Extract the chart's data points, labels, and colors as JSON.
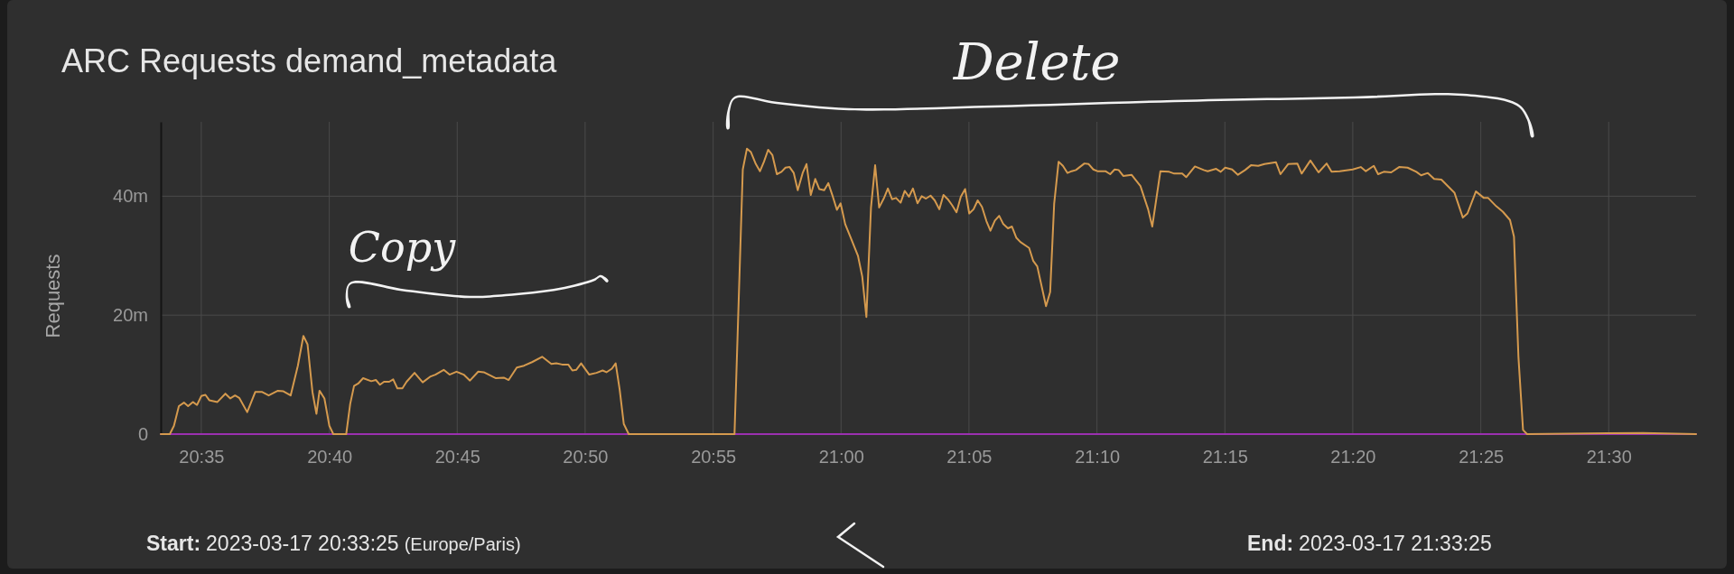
{
  "chart_data": {
    "type": "line",
    "title": "ARC Requests demand_metadata",
    "ylabel": "Requests",
    "annotations": [
      "Copy",
      "Delete",
      "Start: 2023-03-17 20:33:25 (Europe/Paris)",
      "End: 2023-03-17 21:33:25"
    ],
    "xlim": [
      20.5569,
      21.5569
    ],
    "xticks": [
      {
        "value": 20.5833,
        "label": "20:35"
      },
      {
        "value": 20.6667,
        "label": "20:40"
      },
      {
        "value": 20.75,
        "label": "20:45"
      },
      {
        "value": 20.8333,
        "label": "20:50"
      },
      {
        "value": 20.9167,
        "label": "20:55"
      },
      {
        "value": 21.0,
        "label": "21:00"
      },
      {
        "value": 21.0833,
        "label": "21:05"
      },
      {
        "value": 21.1667,
        "label": "21:10"
      },
      {
        "value": 21.25,
        "label": "21:15"
      },
      {
        "value": 21.3333,
        "label": "21:20"
      },
      {
        "value": 21.4167,
        "label": "21:25"
      },
      {
        "value": 21.5,
        "label": "21:30"
      }
    ],
    "ylim": [
      0,
      52.5
    ],
    "yticks": [
      0,
      {
        "value": 20,
        "label": "20m"
      },
      {
        "value": 40,
        "label": "40m"
      }
    ],
    "grid": true,
    "marker": "none",
    "line_style": "solid",
    "series": [
      {
        "color": "#d59a4e",
        "x": [
          20.5569,
          20.5628,
          20.5655,
          20.5687,
          20.572,
          20.5747,
          20.5778,
          20.5805,
          20.5833,
          20.586,
          20.5885,
          20.5938,
          20.599,
          20.6022,
          20.6053,
          20.608,
          20.6132,
          20.6185,
          20.6227,
          20.6272,
          20.6332,
          20.6368,
          20.6415,
          20.6462,
          20.6498,
          20.6525,
          20.6557,
          20.6583,
          20.6603,
          20.6635,
          20.6667,
          20.6693,
          20.6777,
          20.6803,
          20.6828,
          20.6855,
          20.6887,
          20.694,
          20.697,
          20.6997,
          20.7023,
          20.7057,
          20.7083,
          20.711,
          20.7143,
          20.717,
          20.7222,
          20.7275,
          20.7327,
          20.7358,
          20.7412,
          20.745,
          20.7495,
          20.7542,
          20.7583,
          20.7637,
          20.7673,
          20.7752,
          20.7803,
          20.7835,
          20.7888,
          20.7935,
          20.7987,
          20.8053,
          20.8113,
          20.8145,
          20.8183,
          20.8223,
          20.825,
          20.8275,
          20.8307,
          20.836,
          20.8407,
          20.8447,
          20.8472,
          20.8507,
          20.8532,
          20.8558,
          20.8585,
          20.8617,
          20.9,
          20.9306,
          20.936,
          20.9387,
          20.9413,
          20.9445,
          20.9472,
          20.9498,
          20.9525,
          20.9553,
          20.9582,
          20.9612,
          20.9638,
          20.9665,
          20.9692,
          20.9718,
          20.975,
          20.9775,
          20.9803,
          20.9832,
          20.9858,
          20.989,
          20.9917,
          20.9943,
          20.9973,
          20.9997,
          21.0027,
          21.006,
          21.011,
          21.0138,
          21.0165,
          21.0195,
          21.0222,
          21.0248,
          21.0278,
          21.0305,
          21.0332,
          21.0358,
          21.0388,
          21.0415,
          21.0442,
          21.0468,
          21.0498,
          21.0525,
          21.0553,
          21.0583,
          21.061,
          21.064,
          21.0667,
          21.0695,
          21.0723,
          21.0752,
          21.078,
          21.0808,
          21.0835,
          21.0863,
          21.089,
          21.0918,
          21.0947,
          21.0973,
          21.1002,
          21.103,
          21.1057,
          21.1087,
          21.1113,
          21.1142,
          21.1168,
          21.1225,
          21.1252,
          21.1278,
          21.1335,
          21.1362,
          21.1388,
          21.1417,
          21.1445,
          21.1475,
          21.1502,
          21.153,
          21.1585,
          21.1613,
          21.1643,
          21.167,
          21.1722,
          21.1753,
          21.1782,
          21.1808,
          21.1838,
          21.1892,
          21.195,
          21.2,
          21.2027,
          21.208,
          21.2137,
          21.217,
          21.2222,
          21.2248,
          21.2305,
          21.2362,
          21.2388,
          21.2443,
          21.2473,
          21.2502,
          21.2547,
          21.2585,
          21.2632,
          21.267,
          21.2717,
          21.2758,
          21.2833,
          21.2862,
          21.2912,
          21.2972,
          21.3,
          21.3057,
          21.311,
          21.3163,
          21.3195,
          21.3248,
          21.3333,
          21.3385,
          21.3418,
          21.347,
          21.3498,
          21.3535,
          21.3583,
          21.3635,
          21.369,
          21.3747,
          21.3778,
          21.3822,
          21.3863,
          21.391,
          21.3948,
          21.3995,
          21.405,
          21.408,
          21.4135,
          21.4187,
          21.4215,
          21.4268,
          21.431,
          21.4357,
          21.4383,
          21.4412,
          21.4442,
          21.4468,
          21.5223,
          21.5569
        ],
        "values": [
          0,
          0,
          1.4,
          4.7,
          5.3,
          4.7,
          5.4,
          4.9,
          6.4,
          6.6,
          5.7,
          5.4,
          6.8,
          6.0,
          6.5,
          6.1,
          3.7,
          7.1,
          7.1,
          6.5,
          7.3,
          7.2,
          6.5,
          11.5,
          16.5,
          15.1,
          7.1,
          3.4,
          7.3,
          6.0,
          1.4,
          0,
          0,
          5.1,
          8.1,
          8.5,
          9.4,
          8.9,
          9.1,
          8.3,
          8.8,
          8.8,
          9.2,
          7.7,
          7.7,
          8.8,
          10.3,
          8.7,
          9.7,
          10.0,
          10.8,
          10.0,
          10.5,
          10.0,
          9.0,
          10.5,
          10.4,
          9.4,
          9.5,
          9.1,
          11.2,
          11.5,
          12.1,
          13.0,
          11.8,
          11.9,
          11.7,
          11.7,
          10.7,
          10.8,
          11.9,
          10.0,
          10.3,
          10.7,
          10.4,
          11.0,
          11.9,
          7.5,
          1.7,
          0,
          0,
          0,
          44.5,
          48.0,
          47.4,
          45.4,
          44.2,
          45.8,
          47.8,
          46.9,
          43.7,
          44.1,
          44.8,
          44.9,
          43.9,
          41.0,
          43.9,
          45.4,
          40.2,
          42.9,
          41.2,
          41.0,
          42.2,
          40.2,
          37.7,
          38.8,
          35.3,
          33.2,
          30.0,
          26.5,
          19.7,
          38.1,
          45.2,
          38.1,
          39.6,
          41.3,
          39.5,
          39.7,
          38.9,
          40.9,
          39.9,
          41.3,
          38.8,
          40.0,
          39.6,
          40.1,
          39.3,
          37.8,
          40.2,
          39.5,
          38.5,
          37.3,
          39.9,
          41.2,
          37.1,
          37.8,
          39.3,
          38.2,
          35.8,
          34.2,
          35.9,
          36.7,
          35.3,
          34.6,
          34.9,
          33.0,
          32.3,
          31.3,
          29.1,
          28.2,
          21.5,
          23.9,
          38.7,
          45.8,
          45.1,
          43.9,
          44.2,
          44.4,
          45.5,
          45.4,
          44.5,
          44.2,
          44.2,
          43.7,
          44.5,
          44.4,
          43.4,
          43.6,
          41.7,
          37.8,
          34.9,
          44.2,
          44.1,
          43.8,
          43.8,
          43.2,
          45.0,
          44.4,
          44.2,
          44.6,
          44.1,
          44.8,
          44.5,
          43.6,
          44.4,
          45.2,
          45.1,
          45.4,
          45.7,
          43.7,
          45.4,
          45.5,
          43.8,
          46.0,
          44.0,
          45.5,
          44.1,
          44.2,
          44.5,
          44.9,
          44.2,
          45.1,
          43.7,
          44.1,
          44.0,
          44.9,
          44.8,
          44.1,
          43.5,
          43.9,
          42.9,
          42.8,
          41.8,
          40.6,
          36.4,
          37.1,
          40.8,
          39.7,
          39.7,
          38.3,
          37.4,
          36.0,
          33.2,
          13.0,
          0.7,
          0,
          0.2,
          0
        ]
      },
      {
        "color": "#9b30b0",
        "x": [
          20.5569,
          21.5569
        ],
        "values": [
          0,
          0
        ]
      }
    ]
  }
}
